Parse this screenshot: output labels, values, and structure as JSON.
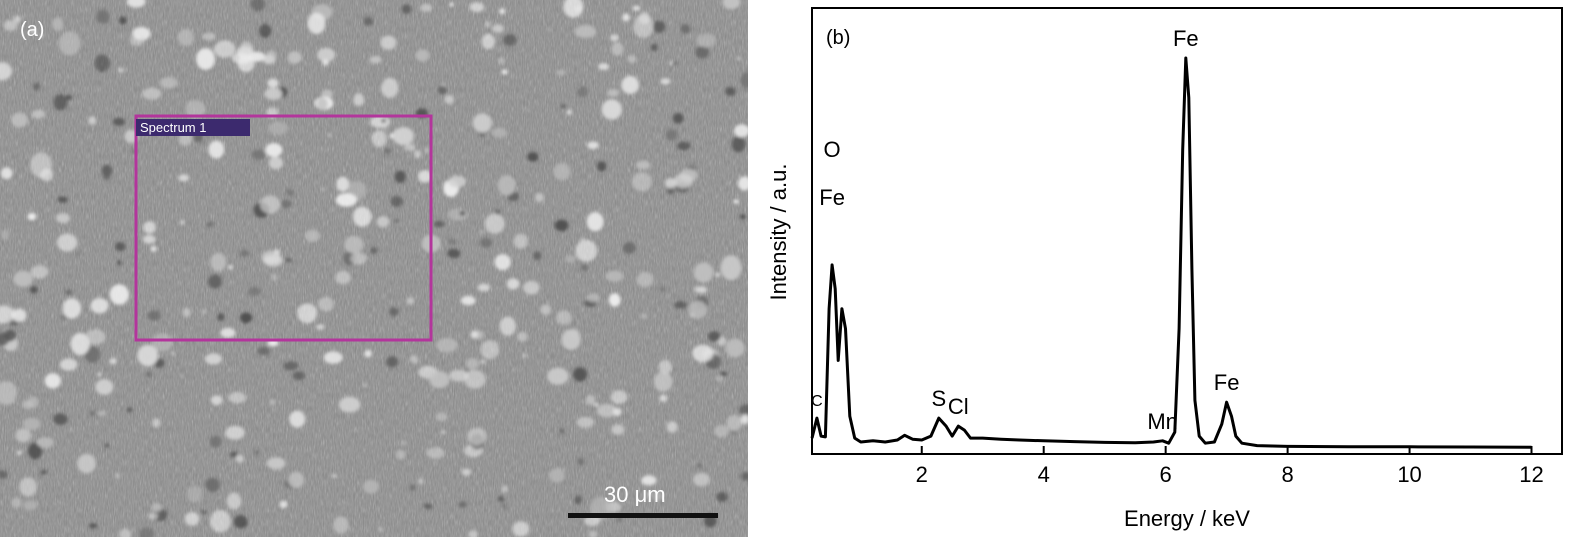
{
  "panel_a": {
    "label": "(a)",
    "roi_label": "Spectrum 1",
    "scale_bar_label": "30 μm",
    "roi_color": "#b3359c"
  },
  "chart_data": {
    "type": "line",
    "panel_label": "(b)",
    "xlabel": "Energy / keV",
    "ylabel": "Intensity / a.u.",
    "xlim": [
      0.2,
      12.5
    ],
    "ylim": [
      0,
      100
    ],
    "xticks": [
      2,
      4,
      6,
      8,
      10,
      12
    ],
    "grid": false,
    "series": [
      {
        "points": [
          [
            0.2,
            2.5
          ],
          [
            0.28,
            7.5
          ],
          [
            0.35,
            3.0
          ],
          [
            0.42,
            2.8
          ],
          [
            0.48,
            35.0
          ],
          [
            0.53,
            46.0
          ],
          [
            0.58,
            40.0
          ],
          [
            0.63,
            22.0
          ],
          [
            0.69,
            35.0
          ],
          [
            0.75,
            30.0
          ],
          [
            0.82,
            8.0
          ],
          [
            0.9,
            2.5
          ],
          [
            1.0,
            1.5
          ],
          [
            1.2,
            1.8
          ],
          [
            1.4,
            1.5
          ],
          [
            1.6,
            2.0
          ],
          [
            1.72,
            3.2
          ],
          [
            1.85,
            2.2
          ],
          [
            2.0,
            2.0
          ],
          [
            2.15,
            3.0
          ],
          [
            2.28,
            7.5
          ],
          [
            2.4,
            5.5
          ],
          [
            2.5,
            3.0
          ],
          [
            2.6,
            5.5
          ],
          [
            2.7,
            4.5
          ],
          [
            2.8,
            2.5
          ],
          [
            3.0,
            2.5
          ],
          [
            3.3,
            2.2
          ],
          [
            3.6,
            2.0
          ],
          [
            4.0,
            1.8
          ],
          [
            4.5,
            1.6
          ],
          [
            5.0,
            1.4
          ],
          [
            5.5,
            1.3
          ],
          [
            5.8,
            1.5
          ],
          [
            5.95,
            1.8
          ],
          [
            6.05,
            1.2
          ],
          [
            6.15,
            4.0
          ],
          [
            6.22,
            30.0
          ],
          [
            6.28,
            75.0
          ],
          [
            6.33,
            98.0
          ],
          [
            6.38,
            88.0
          ],
          [
            6.43,
            45.0
          ],
          [
            6.48,
            12.0
          ],
          [
            6.55,
            3.0
          ],
          [
            6.65,
            1.2
          ],
          [
            6.8,
            1.5
          ],
          [
            6.92,
            6.0
          ],
          [
            7.0,
            11.5
          ],
          [
            7.08,
            8.0
          ],
          [
            7.15,
            3.0
          ],
          [
            7.25,
            1.2
          ],
          [
            7.5,
            0.6
          ],
          [
            8.0,
            0.4
          ],
          [
            9.0,
            0.3
          ],
          [
            10.0,
            0.3
          ],
          [
            11.0,
            0.25
          ],
          [
            12.0,
            0.2
          ]
        ]
      }
    ],
    "peak_labels": [
      {
        "text": "C",
        "x": 0.28,
        "y": 7.5
      },
      {
        "text": "O",
        "x": 0.53,
        "y": 46.0,
        "line": 2
      },
      {
        "text": "Fe",
        "x": 0.53,
        "y": 46.0,
        "line": 1
      },
      {
        "text": "S",
        "x": 2.28,
        "y": 7.5
      },
      {
        "text": "Cl",
        "x": 2.6,
        "y": 5.5
      },
      {
        "text": "Mn",
        "x": 5.95,
        "y": 1.8
      },
      {
        "text": "Fe",
        "x": 6.33,
        "y": 98.0
      },
      {
        "text": "Fe",
        "x": 7.0,
        "y": 11.5
      }
    ]
  }
}
